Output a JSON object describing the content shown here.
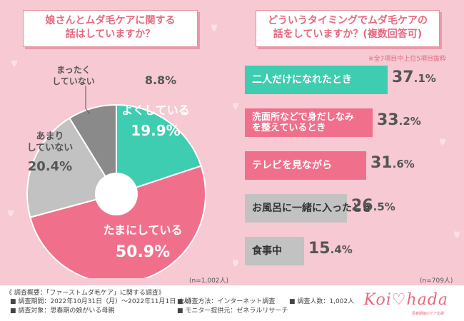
{
  "left_panel": {
    "title": "娘さんとムダ毛ケアに関する\n話はしていますか？",
    "sample_note": "(n=1,002人)"
  },
  "right_panel": {
    "title": "どういうタイミングでムダ毛ケアの\n話をしていますか？(複数回答可)",
    "top_note": "※全7項目中上位5項目抜粋",
    "sample_note": "(n=709人)"
  },
  "chart_data": [
    {
      "type": "pie",
      "categories": [
        "よくしている",
        "たまにしている",
        "あまりしていない",
        "まったくしていない"
      ],
      "display_labels": [
        "よくしている",
        "たまにしている",
        "あまり\nしていない",
        "まったく\nしていない"
      ],
      "values": [
        19.9,
        50.9,
        20.4,
        8.8
      ],
      "value_labels": [
        "19.9%",
        "50.9%",
        "20.4%",
        "8.8%"
      ],
      "colors": [
        "#3ecdb0",
        "#f0708c",
        "#c2c2c2",
        "#8a8a8a"
      ]
    },
    {
      "type": "bar",
      "orientation": "horizontal",
      "categories": [
        "二人だけになれたとき",
        "洗面所などで身だしなみを整えているとき",
        "テレビを見ながら",
        "お風呂に一緒に入ったとき",
        "食事中"
      ],
      "display_labels": [
        "二人だけになれたとき",
        "洗面所などで身だしなみ\nを整えているとき",
        "テレビを見ながら",
        "お風呂に一緒に入ったとき",
        "食事中"
      ],
      "values": [
        37.1,
        33.2,
        31.6,
        26.5,
        15.4
      ],
      "value_labels": [
        "37.1%",
        "33.2%",
        "31.6%",
        "26.5%",
        "15.4%"
      ],
      "colors": [
        "#3ecdb0",
        "#f0708c",
        "#f0708c",
        "#c2c2c2",
        "#c2c2c2"
      ]
    }
  ],
  "footer": {
    "survey_title": "《 調査概要：「ファーストムダ毛ケア」に関する調査》",
    "period": "■ 調査期間：2022年10月31日（月）～2022年11月1日（火）",
    "target": "■ 調査対象：思春期の娘がいる母親",
    "method": "■ 調査方法：インターネット調査",
    "provider": "■ モニター提供元：ゼネラルリサーチ",
    "count": "■ 調査人数：1,002人",
    "logo": "Koi♡hada",
    "logo_sub": "思春期娘のケア応援"
  },
  "theme": {
    "accent": "#e46a7f",
    "teal": "#3ecdb0",
    "pink": "#f0708c",
    "gray": "#c2c2c2",
    "dark_gray": "#8a8a8a",
    "background": "#f6c9d3"
  }
}
